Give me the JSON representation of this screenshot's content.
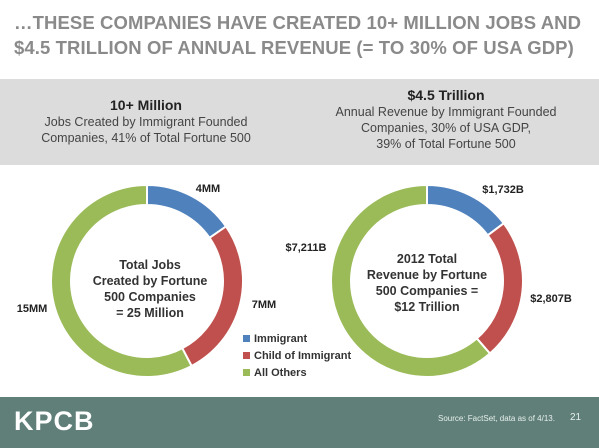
{
  "slide": {
    "title": "…THESE COMPANIES HAVE CREATED 10+ MILLION JOBS AND $4.5 TRILLION OF ANNUAL REVENUE (= TO 30% OF USA GDP)",
    "left_header": {
      "headline": "10+ Million",
      "line1": "Jobs Created by Immigrant Founded",
      "line2": "Companies, 41% of Total Fortune 500"
    },
    "right_header": {
      "headline": "$4.5 Trillion",
      "line1": "Annual Revenue by Immigrant Founded",
      "line2": "Companies, 30% of USA GDP,",
      "line3": "39% of Total Fortune 500"
    },
    "footer": {
      "logo": "KPCB",
      "source": "Source: FactSet, data as of 4/13.",
      "page": "21"
    },
    "legend": [
      "Immigrant",
      "Child of Immigrant",
      "All Others"
    ],
    "colors": {
      "immigrant": "#4f81bd",
      "child_of_immigrant": "#c0504d",
      "all_others": "#9bbb59",
      "band": "#dcdcdc",
      "footer": "#5f7f78"
    }
  },
  "chart_data": [
    {
      "type": "pie",
      "variant": "donut",
      "center_label": [
        "Total Jobs",
        "Created by Fortune",
        "500 Companies",
        "= 25 Million"
      ],
      "categories": [
        "Immigrant",
        "Child of Immigrant",
        "All Others"
      ],
      "values": [
        4,
        7,
        15
      ],
      "data_labels": [
        "4MM",
        "7MM",
        "15MM"
      ]
    },
    {
      "type": "pie",
      "variant": "donut",
      "center_label": [
        "2012 Total",
        "Revenue by Fortune",
        "500 Companies =",
        "$12 Trillion"
      ],
      "categories": [
        "Immigrant",
        "Child of Immigrant",
        "All Others"
      ],
      "values": [
        1732,
        2807,
        7211
      ],
      "data_labels": [
        "$1,732B",
        "$2,807B",
        "$7,211B"
      ]
    }
  ]
}
